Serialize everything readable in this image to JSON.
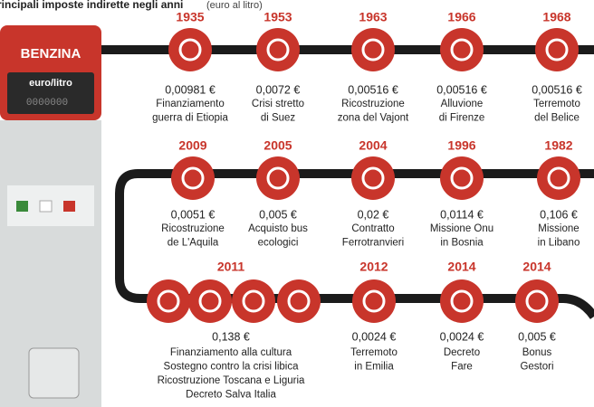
{
  "header": {
    "title": "rincipali imposte indirette negli anni",
    "subtitle": "(euro al litro)"
  },
  "pump": {
    "label": "BENZINA",
    "unit": "euro/litro",
    "display": "0000000"
  },
  "events": [
    {
      "year": "1935",
      "amount": "0,00981 €",
      "lines": [
        "Finanziamento",
        "guerra di Etiopia"
      ]
    },
    {
      "year": "1953",
      "amount": "0,0072 €",
      "lines": [
        "Crisi stretto",
        "di Suez"
      ]
    },
    {
      "year": "1963",
      "amount": "0,00516 €",
      "lines": [
        "Ricostruzione",
        "zona del Vajont"
      ]
    },
    {
      "year": "1966",
      "amount": "0,00516 €",
      "lines": [
        "Alluvione",
        "di Firenze"
      ]
    },
    {
      "year": "1968",
      "amount": "0,00516 €",
      "lines": [
        "Terremoto",
        "del Belice"
      ]
    },
    {
      "year": "2009",
      "amount": "0,0051 €",
      "lines": [
        "Ricostruzione",
        "de L'Aquila"
      ]
    },
    {
      "year": "2005",
      "amount": "0,005 €",
      "lines": [
        "Acquisto bus",
        "ecologici"
      ]
    },
    {
      "year": "2004",
      "amount": "0,02 €",
      "lines": [
        "Contratto",
        "Ferrotranvieri"
      ]
    },
    {
      "year": "1996",
      "amount": "0,0114 €",
      "lines": [
        "Missione Onu",
        "in Bosnia"
      ]
    },
    {
      "year": "1982",
      "amount": "0,106 €",
      "lines": [
        "Missione",
        "in Libano"
      ]
    },
    {
      "year": "2011",
      "amount": "0,138 €",
      "lines": [
        "Finanziamento alla cultura",
        "Sostegno contro la crisi libica",
        "Ricostruzione Toscana e Liguria",
        "Decreto Salva Italia"
      ]
    },
    {
      "year": "2012",
      "amount": "0,0024 €",
      "lines": [
        "Terremoto",
        "in Emilia"
      ]
    },
    {
      "year": "2014",
      "amount": "0,0024 €",
      "lines": [
        "Decreto",
        "Fare"
      ]
    },
    {
      "year": "2014",
      "amount": "0,005 €",
      "lines": [
        "Bonus",
        "Gestori"
      ]
    }
  ]
}
